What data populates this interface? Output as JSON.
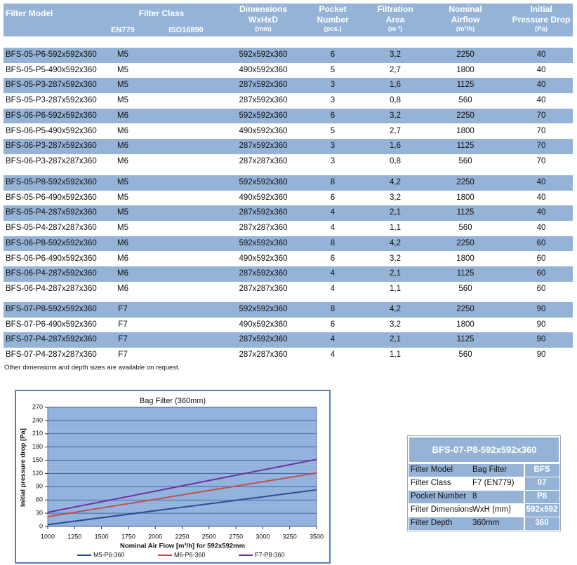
{
  "table": {
    "columns": [
      {
        "lines": [
          "Filter Model"
        ]
      },
      {
        "lines": [
          "Filter Class"
        ],
        "sub": [
          "EN779",
          "ISO16890"
        ]
      },
      {
        "lines": [
          "Dimensions",
          "WxHxD",
          "(mm)"
        ]
      },
      {
        "lines": [
          "Pocket",
          "Number",
          "(pcs.)"
        ]
      },
      {
        "lines": [
          "Filtration",
          "Area",
          "(m ²)"
        ]
      },
      {
        "lines": [
          "Nominal",
          "Airflow",
          "(m³/h)"
        ]
      },
      {
        "lines": [
          "Initial",
          "Pressure Drop",
          "(Pa)"
        ]
      }
    ],
    "groups": [
      [
        [
          "BFS-05-P6-592x592x360",
          "M5",
          "592x592x360",
          "6",
          "3,2",
          "2250",
          "40"
        ],
        [
          "BFS-05-P5-490x592x360",
          "M5",
          "490x592x360",
          "5",
          "2,7",
          "1800",
          "40"
        ],
        [
          "BFS-05-P3-287x592x360",
          "M5",
          "287x592x360",
          "3",
          "1,6",
          "1125",
          "40"
        ],
        [
          "BFS-05-P3-287x592x360",
          "M5",
          "287x592x360",
          "3",
          "0,8",
          "560",
          "40"
        ],
        [
          "BFS-06-P6-592x592x360",
          "M6",
          "592x592x360",
          "6",
          "3,2",
          "2250",
          "70"
        ],
        [
          "BFS-06-P5-490x592x360",
          "M6",
          "490x592x360",
          "5",
          "2,7",
          "1800",
          "70"
        ],
        [
          "BFS-06-P3-287x592x360",
          "M6",
          "287x592x360",
          "3",
          "1,6",
          "1125",
          "70"
        ],
        [
          "BFS-06-P3-287x287x360",
          "M6",
          "287x287x360",
          "3",
          "0,8",
          "560",
          "70"
        ]
      ],
      [
        [
          "BFS-05-P8-592x592x360",
          "M5",
          "592x592x360",
          "8",
          "4,2",
          "2250",
          "40"
        ],
        [
          "BFS-05-P6-490x592x360",
          "M5",
          "490x592x360",
          "6",
          "3,2",
          "1800",
          "40"
        ],
        [
          "BFS-05-P4-287x592x360",
          "M5",
          "287x592x360",
          "4",
          "2,1",
          "1125",
          "40"
        ],
        [
          "BFS-05-P4-287x287x360",
          "M5",
          "287x287x360",
          "4",
          "1,1",
          "560",
          "40"
        ],
        [
          "BFS-06-P8-592x592x360",
          "M6",
          "592x592x360",
          "8",
          "4,2",
          "2250",
          "60"
        ],
        [
          "BFS-06-P6-490x592x360",
          "M6",
          "490x592x360",
          "6",
          "3,2",
          "1800",
          "60"
        ],
        [
          "BFS-06-P4-287x592x360",
          "M6",
          "287x592x360",
          "4",
          "2,1",
          "1125",
          "60"
        ],
        [
          "BFS-06-P4-287x287x360",
          "M6",
          "287x287x360",
          "4",
          "1,1",
          "560",
          "60"
        ]
      ],
      [
        [
          "BFS-07-P8-592x592x360",
          "F7",
          "592x592x360",
          "8",
          "4,2",
          "2250",
          "90"
        ],
        [
          "BFS-07-P6-490x592x360",
          "F7",
          "490x592x360",
          "6",
          "3,2",
          "1800",
          "90"
        ],
        [
          "BFS-07-P4-287x592x360",
          "F7",
          "287x592x360",
          "4",
          "2,1",
          "1125",
          "90"
        ],
        [
          "BFS-07-P4-287x287x360",
          "F7",
          "287x287x360",
          "4",
          "1,1",
          "560",
          "90"
        ]
      ]
    ],
    "note": "Other dimensions and depth sizes are available on request."
  },
  "chart_data": {
    "type": "line",
    "title": "Bag Filter (360mm)",
    "x_label": "Nominal Air Flow [m³/h] for 592x592mm",
    "y_label": "Initial pressure drop [Pa]",
    "x": [
      1000,
      3500
    ],
    "series": [
      {
        "name": "M5-P6-360",
        "color": "#2a4f8f",
        "values": [
          4,
          83
        ]
      },
      {
        "name": "M6-P6-360",
        "color": "#c0504d",
        "values": [
          22,
          121
        ]
      },
      {
        "name": "F7-P8-360",
        "color": "#7030a0",
        "values": [
          32,
          152
        ]
      }
    ],
    "xlim": [
      1000,
      3500
    ],
    "xticks": [
      1000,
      1250,
      1500,
      1750,
      2000,
      2250,
      2500,
      2750,
      3000,
      3250,
      3500
    ],
    "ylim": [
      0,
      270
    ],
    "yticks": [
      0,
      30,
      60,
      90,
      120,
      150,
      180,
      210,
      240,
      270
    ],
    "grid": true,
    "legend": "bottom"
  },
  "spec_card": {
    "title": "BFS-07-P8-592x592x360",
    "rows": [
      [
        "Filter Model",
        "Bag Filter",
        "BFS"
      ],
      [
        "Filter Class",
        "F7 (EN779)",
        "07"
      ],
      [
        "Pocket Number",
        "8",
        "P8"
      ],
      [
        "Filter Dimensions",
        "WxH (mm)",
        "592x592"
      ],
      [
        "Filter Depth",
        "360mm",
        "360"
      ]
    ]
  }
}
